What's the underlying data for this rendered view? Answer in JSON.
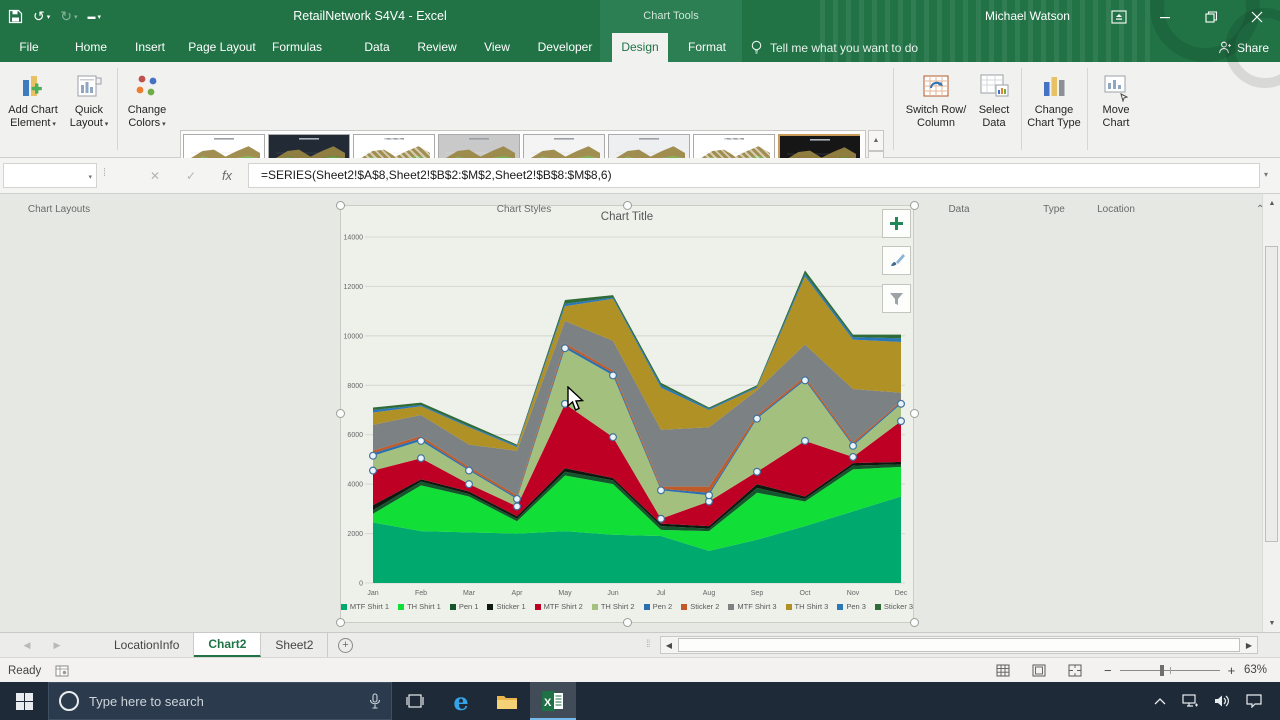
{
  "titlebar": {
    "title": "RetailNetwork S4V4  -  Excel",
    "contextual_label": "Chart Tools",
    "user_name": "Michael Watson"
  },
  "ribbon_tabs": {
    "items": [
      {
        "label": "File",
        "active": false
      },
      {
        "label": "Home",
        "active": false
      },
      {
        "label": "Insert",
        "active": false
      },
      {
        "label": "Page Layout",
        "active": false
      },
      {
        "label": "Formulas",
        "active": false
      },
      {
        "label": "Data",
        "active": false
      },
      {
        "label": "Review",
        "active": false
      },
      {
        "label": "View",
        "active": false
      },
      {
        "label": "Developer",
        "active": false
      },
      {
        "label": "Design",
        "active": true
      },
      {
        "label": "Format",
        "active": false
      }
    ],
    "tell_me": "Tell me what you want to do",
    "share": "Share"
  },
  "ribbon": {
    "add_chart_element": {
      "line1": "Add Chart",
      "line2": "Element"
    },
    "quick_layout": {
      "line1": "Quick",
      "line2": "Layout"
    },
    "change_colors": {
      "line1": "Change",
      "line2": "Colors"
    },
    "switch_row_column": {
      "line1": "Switch Row/",
      "line2": "Column"
    },
    "select_data": {
      "line1": "Select",
      "line2": "Data"
    },
    "change_chart_type": {
      "line1": "Change",
      "line2": "Chart Type"
    },
    "move_chart": {
      "line1": "Move",
      "line2": "Chart"
    },
    "group_labels": {
      "chart_layouts": "Chart Layouts",
      "chart_styles": "Chart Styles",
      "data": "Data",
      "type": "Type",
      "location": "Location"
    },
    "chart_styles_gallery": {
      "thumbs": [
        {
          "name": "style-1",
          "bg": "#FFFFFF",
          "dark": false,
          "hatch": false,
          "selected": false
        },
        {
          "name": "style-2",
          "bg": "#222B35",
          "dark": true,
          "hatch": false,
          "selected": false
        },
        {
          "name": "style-3",
          "bg": "#FFFFFF",
          "dark": false,
          "hatch": true,
          "selected": false
        },
        {
          "name": "style-4",
          "bg": "#C9C9C9",
          "dark": false,
          "hatch": false,
          "selected": false
        },
        {
          "name": "style-5",
          "bg": "#F4F4F4",
          "dark": false,
          "hatch": false,
          "selected": false
        },
        {
          "name": "style-6",
          "bg": "#EDEFF1",
          "dark": false,
          "hatch": false,
          "selected": false
        },
        {
          "name": "style-7",
          "bg": "#FFFFFF",
          "dark": false,
          "hatch": true,
          "selected": false
        },
        {
          "name": "style-8",
          "bg": "#161616",
          "dark": true,
          "hatch": false,
          "selected": true
        }
      ]
    }
  },
  "formula_bar": {
    "name_box": "",
    "fx_label": "fx",
    "formula": "=SERIES(Sheet2!$A$8,Sheet2!$B$2:$M$2,Sheet2!$B$8:$M$8,6)"
  },
  "chart": {
    "title": "Chart Title",
    "chart_data": {
      "type": "area",
      "stacked": true,
      "title": "Chart Title",
      "categories": [
        "Jan",
        "Feb",
        "Mar",
        "Apr",
        "May",
        "Jun",
        "Jul",
        "Aug",
        "Sep",
        "Oct",
        "Nov",
        "Dec"
      ],
      "ylim": [
        0,
        14000
      ],
      "y_ticks": [
        0,
        2000,
        4000,
        6000,
        8000,
        10000,
        12000,
        14000
      ],
      "grid": true,
      "legend_position": "bottom",
      "selected_series": "TH Shirt 2",
      "selected_series_index": 5,
      "series": [
        {
          "name": "MTF Shirt 1",
          "color": "#00A96E",
          "values": [
            2450,
            2100,
            2050,
            2000,
            2100,
            1950,
            1900,
            1300,
            1750,
            2300,
            2900,
            3500
          ]
        },
        {
          "name": "TH Shirt 1",
          "color": "#12DE38",
          "values": [
            350,
            1850,
            1450,
            500,
            2250,
            2050,
            250,
            800,
            1900,
            1000,
            1700,
            1200
          ]
        },
        {
          "name": "Pen 1",
          "color": "#14562C",
          "values": [
            150,
            150,
            100,
            100,
            150,
            150,
            150,
            100,
            200,
            100,
            150,
            100
          ]
        },
        {
          "name": "Sticker 1",
          "color": "#0E1A10",
          "values": [
            200,
            100,
            100,
            100,
            150,
            100,
            100,
            100,
            150,
            100,
            100,
            100
          ]
        },
        {
          "name": "MTF Shirt 2",
          "color": "#BE0024",
          "values": [
            1400,
            850,
            300,
            400,
            2600,
            1650,
            200,
            1000,
            500,
            2250,
            250,
            1650
          ]
        },
        {
          "name": "TH Shirt 2",
          "color": "#A3C07E",
          "values": [
            600,
            700,
            550,
            300,
            2250,
            2500,
            1150,
            250,
            2150,
            2450,
            450,
            700
          ]
        },
        {
          "name": "Pen 2",
          "color": "#2A6FB0",
          "values": [
            100,
            100,
            60,
            60,
            100,
            100,
            60,
            100,
            60,
            60,
            60,
            60
          ]
        },
        {
          "name": "Sticker 2",
          "color": "#C05A28",
          "values": [
            100,
            100,
            90,
            90,
            100,
            100,
            90,
            250,
            90,
            90,
            90,
            40
          ]
        },
        {
          "name": "MTF Shirt 3",
          "color": "#7C8183",
          "values": [
            1050,
            850,
            900,
            1800,
            900,
            1200,
            2300,
            2400,
            1000,
            1300,
            2150,
            350
          ]
        },
        {
          "name": "TH Shirt 3",
          "color": "#B09126",
          "values": [
            500,
            350,
            700,
            150,
            600,
            1700,
            1700,
            700,
            100,
            2750,
            2000,
            2050
          ]
        },
        {
          "name": "Pen 3",
          "color": "#2B78B8",
          "values": [
            100,
            50,
            50,
            50,
            100,
            50,
            100,
            50,
            50,
            100,
            100,
            150
          ]
        },
        {
          "name": "Sticker 3",
          "color": "#2E6B37",
          "values": [
            100,
            100,
            100,
            50,
            150,
            100,
            100,
            50,
            50,
            150,
            100,
            150
          ]
        }
      ]
    }
  },
  "sheet_tabs": {
    "tabs": [
      {
        "label": "LocationInfo",
        "active": false
      },
      {
        "label": "Chart2",
        "active": true
      },
      {
        "label": "Sheet2",
        "active": false
      }
    ]
  },
  "status_bar": {
    "mode": "Ready",
    "zoom_percent": "63%"
  },
  "taskbar": {
    "search_placeholder": "Type here to search"
  }
}
